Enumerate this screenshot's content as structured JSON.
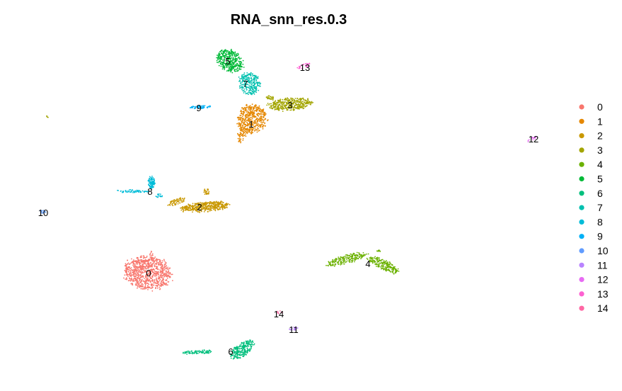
{
  "chart_data": {
    "type": "scatter",
    "title": "RNA_snn_res.0.3",
    "xlabel": "",
    "ylabel": "",
    "grid": false,
    "axes_shown": false,
    "legend_position": "right",
    "clusters": [
      {
        "name": "0",
        "color": "#F8766D",
        "center": [
          210,
          385
        ]
      },
      {
        "name": "1",
        "color": "#E58700",
        "center": [
          355,
          175
        ]
      },
      {
        "name": "2",
        "color": "#C99800",
        "center": [
          282,
          292
        ]
      },
      {
        "name": "3",
        "color": "#A3A500",
        "center": [
          410,
          148
        ]
      },
      {
        "name": "4",
        "color": "#6BB100",
        "center": [
          520,
          372
        ]
      },
      {
        "name": "5",
        "color": "#00BA38",
        "center": [
          322,
          86
        ]
      },
      {
        "name": "6",
        "color": "#00BF7D",
        "center": [
          326,
          496
        ]
      },
      {
        "name": "7",
        "color": "#00C0AF",
        "center": [
          347,
          118
        ]
      },
      {
        "name": "8",
        "color": "#00BCD8",
        "center": [
          212,
          270
        ]
      },
      {
        "name": "9",
        "color": "#00B0F6",
        "center": [
          281,
          152
        ]
      },
      {
        "name": "10",
        "color": "#619CFF",
        "center": [
          61,
          300
        ]
      },
      {
        "name": "11",
        "color": "#B983FF",
        "center": [
          415,
          465
        ]
      },
      {
        "name": "12",
        "color": "#E76BF3",
        "center": [
          754,
          196
        ]
      },
      {
        "name": "13",
        "color": "#FD61D1",
        "center": [
          431,
          95
        ]
      },
      {
        "name": "14",
        "color": "#FF67A4",
        "center": [
          394,
          443
        ]
      }
    ]
  }
}
